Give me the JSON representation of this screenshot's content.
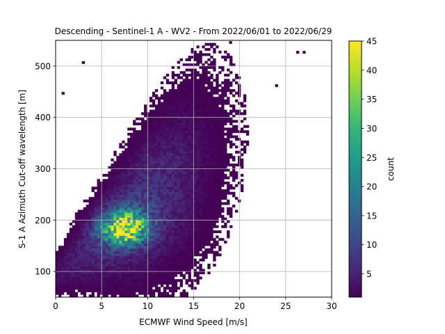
{
  "chart_data": {
    "type": "heatmap",
    "title": "Descending - Sentinel-1 A - WV2 - From 2022/06/01 to 2022/06/29",
    "xlabel": "ECMWF Wind Speed [m/s]",
    "ylabel": "S-1 A Azimuth Cut-off wavelength [m]",
    "xlim": [
      0,
      30
    ],
    "ylim": [
      50,
      550
    ],
    "xticks": [
      0,
      5,
      10,
      15,
      20,
      25,
      30
    ],
    "yticks": [
      100,
      200,
      300,
      400,
      500
    ],
    "grid": true,
    "colorbar": {
      "label": "count",
      "colormap": "viridis",
      "range": [
        1,
        45
      ],
      "ticks": [
        5,
        10,
        15,
        20,
        25,
        30,
        35,
        40,
        45
      ]
    },
    "density_model": {
      "ridge_intercept": 95,
      "ridge_slope": 13.5,
      "core_center": [
        7.5,
        185
      ],
      "core_peak_count": 45
    },
    "notable_points": [
      {
        "x": 26.3,
        "y": 527
      },
      {
        "x": 19,
        "y": 546
      },
      {
        "x": 24,
        "y": 462
      },
      {
        "x": 0.8,
        "y": 447
      },
      {
        "x": 3.0,
        "y": 507
      },
      {
        "x": 12.2,
        "y": 123
      },
      {
        "x": 2.1,
        "y": 54
      },
      {
        "x": 6.3,
        "y": 54
      },
      {
        "x": 27.0,
        "y": 527
      }
    ]
  },
  "colors": {
    "grid": "#b0b0b0",
    "viridis": [
      "#440154",
      "#482878",
      "#3e4989",
      "#31688e",
      "#26828e",
      "#1f9e89",
      "#35b779",
      "#6ece58",
      "#b5de2b",
      "#fde725"
    ]
  }
}
